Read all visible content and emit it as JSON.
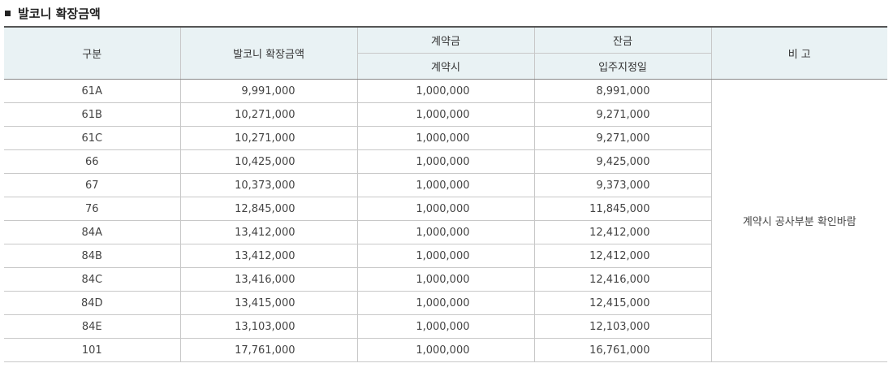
{
  "title": "발코니 확장금액",
  "table": {
    "headers": {
      "type": "구분",
      "amount": "발코니 확장금액",
      "deposit_group": "계약금",
      "deposit_sub": "계약시",
      "balance_group": "잔금",
      "balance_sub": "입주지정일",
      "note": "비 고"
    },
    "note_text": "계약시 공사부분 확인바람",
    "rows": [
      {
        "type": "61A",
        "amount": "9,991,000",
        "deposit": "1,000,000",
        "balance": "8,991,000"
      },
      {
        "type": "61B",
        "amount": "10,271,000",
        "deposit": "1,000,000",
        "balance": "9,271,000"
      },
      {
        "type": "61C",
        "amount": "10,271,000",
        "deposit": "1,000,000",
        "balance": "9,271,000"
      },
      {
        "type": "66",
        "amount": "10,425,000",
        "deposit": "1,000,000",
        "balance": "9,425,000"
      },
      {
        "type": "67",
        "amount": "10,373,000",
        "deposit": "1,000,000",
        "balance": "9,373,000"
      },
      {
        "type": "76",
        "amount": "12,845,000",
        "deposit": "1,000,000",
        "balance": "11,845,000"
      },
      {
        "type": "84A",
        "amount": "13,412,000",
        "deposit": "1,000,000",
        "balance": "12,412,000"
      },
      {
        "type": "84B",
        "amount": "13,412,000",
        "deposit": "1,000,000",
        "balance": "12,412,000"
      },
      {
        "type": "84C",
        "amount": "13,416,000",
        "deposit": "1,000,000",
        "balance": "12,416,000"
      },
      {
        "type": "84D",
        "amount": "13,415,000",
        "deposit": "1,000,000",
        "balance": "12,415,000"
      },
      {
        "type": "84E",
        "amount": "13,103,000",
        "deposit": "1,000,000",
        "balance": "12,103,000"
      },
      {
        "type": "101",
        "amount": "17,761,000",
        "deposit": "1,000,000",
        "balance": "16,761,000"
      }
    ]
  }
}
